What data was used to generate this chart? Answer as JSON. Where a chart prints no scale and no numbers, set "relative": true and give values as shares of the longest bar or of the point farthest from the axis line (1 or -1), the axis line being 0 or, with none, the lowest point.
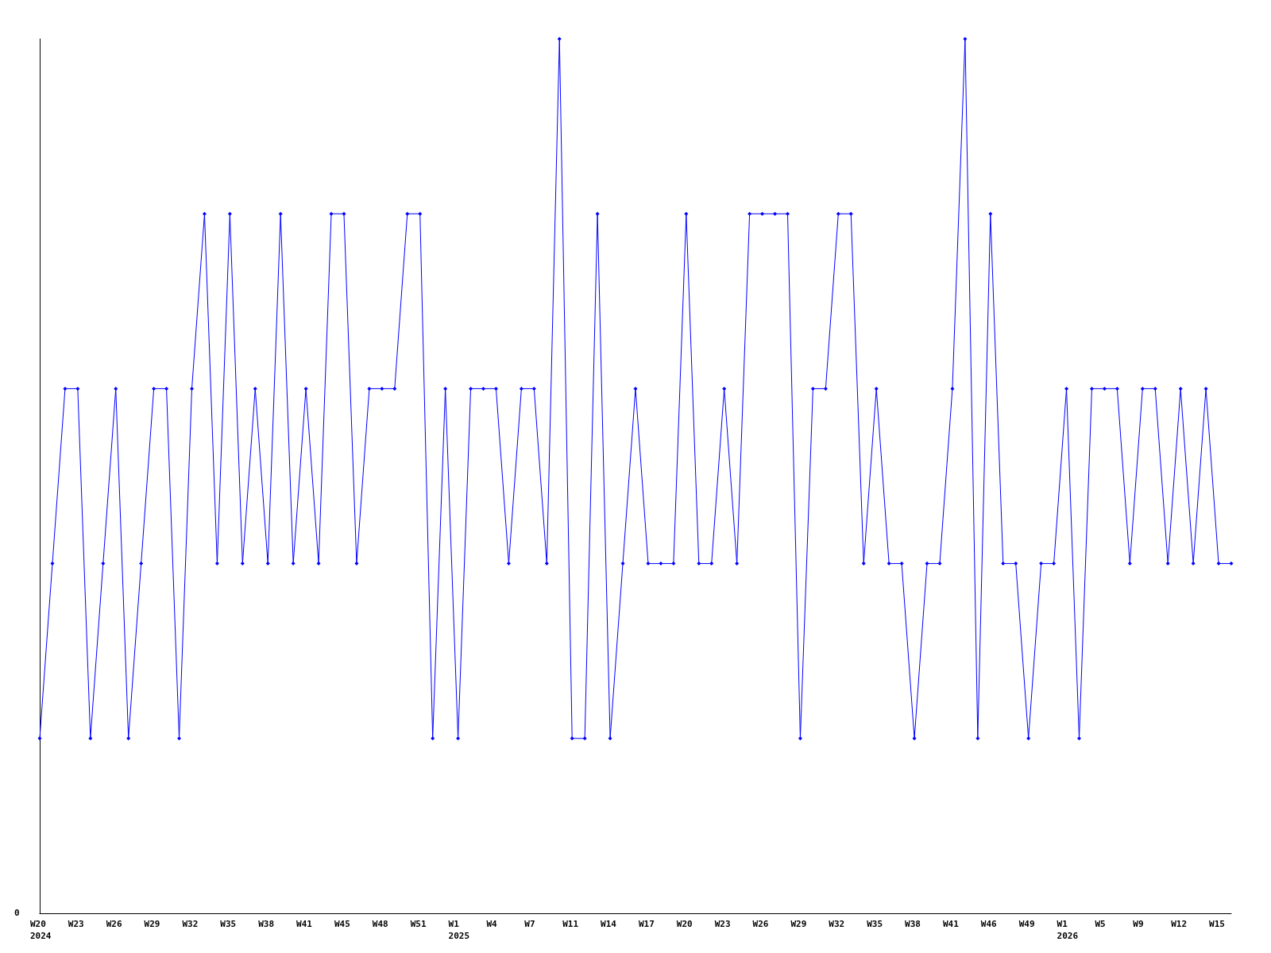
{
  "chart_data": {
    "type": "line",
    "relative": true,
    "marker": "diamond",
    "line_style": "solid",
    "categories": [
      "W20\n2024",
      null,
      null,
      "W23",
      null,
      null,
      "W26",
      null,
      null,
      "W29",
      null,
      null,
      "W32",
      null,
      null,
      "W35",
      null,
      null,
      "W38",
      null,
      null,
      "W41",
      null,
      null,
      "W45",
      null,
      null,
      "W48",
      null,
      null,
      "W51",
      null,
      null,
      "W1\n2025",
      null,
      null,
      "W4",
      null,
      null,
      "W7",
      null,
      null,
      "W11",
      null,
      null,
      "W14",
      null,
      null,
      "W17",
      null,
      null,
      "W20",
      null,
      null,
      "W23",
      null,
      null,
      "W26",
      null,
      null,
      "W29",
      null,
      null,
      "W32",
      null,
      null,
      "W35",
      null,
      null,
      "W38",
      null,
      null,
      "W41",
      null,
      null,
      "W46",
      null,
      null,
      "W49",
      null,
      null,
      "W1\n2026",
      null,
      null,
      "W5",
      null,
      null,
      "W9",
      null,
      null,
      "W12",
      null,
      null,
      "W15",
      null
    ],
    "series": [
      {
        "color": "#0000ff",
        "values": [
          0.2,
          0.4,
          0.6,
          0.6,
          0.2,
          0.4,
          0.6,
          0.2,
          0.4,
          0.6,
          0.6,
          0.2,
          0.6,
          0.8,
          0.4,
          0.8,
          0.4,
          0.6,
          0.4,
          0.8,
          0.4,
          0.6,
          0.4,
          0.8,
          0.8,
          0.4,
          0.6,
          0.6,
          0.6,
          0.8,
          0.8,
          0.2,
          0.6,
          0.2,
          0.6,
          0.6,
          0.6,
          0.4,
          0.6,
          0.6,
          0.4,
          1,
          0.2,
          0.2,
          0.8,
          0.2,
          0.4,
          0.6,
          0.4,
          0.4,
          0.4,
          0.8,
          0.4,
          0.4,
          0.6,
          0.4,
          0.8,
          0.8,
          0.8,
          0.8,
          0.2,
          0.6,
          0.6,
          0.8,
          0.8,
          0.4,
          0.6,
          0.4,
          0.4,
          0.2,
          0.4,
          0.4,
          0.6,
          1,
          0.2,
          0.8,
          0.4,
          0.4,
          0.2,
          0.4,
          0.4,
          0.6,
          0.2,
          0.6,
          0.6,
          0.6,
          0.4,
          0.6,
          0.6,
          0.4,
          0.6,
          0.4,
          0.6,
          0.4,
          0.4
        ]
      }
    ],
    "annotations": [
      "0"
    ]
  }
}
